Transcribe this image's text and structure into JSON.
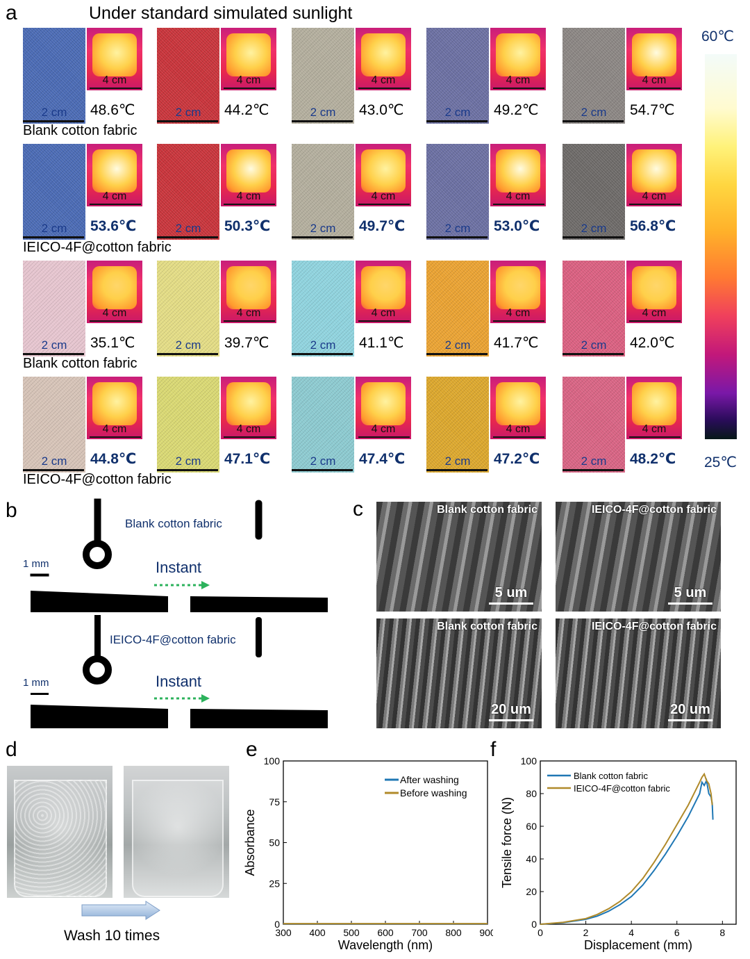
{
  "panel_a": {
    "letter": "a",
    "title": "Under standard simulated sunlight",
    "scale_small": "2 cm",
    "scale_large": "4 cm",
    "colorbar": {
      "max_label": "60℃",
      "min_label": "25℃"
    },
    "rows": [
      {
        "label": "",
        "bold": false,
        "fabric_colors": [
          "#4a6ab4",
          "#c8333a",
          "#b3ae9d",
          "#6b6fa2",
          "#8b8683"
        ],
        "temps": [
          "48.6℃",
          "44.2℃",
          "43.0℃",
          "49.2℃",
          "54.7℃"
        ],
        "hot_levels": [
          0.55,
          0.5,
          0.48,
          0.56,
          0.7
        ]
      },
      {
        "label": "Blank cotton fabric",
        "bold": true,
        "fabric_colors": [
          "#4a6ab4",
          "#c8333a",
          "#b3ae9d",
          "#6b6fa2",
          "#6d6a68"
        ],
        "temps": [
          "53.6℃",
          "50.3℃",
          "49.7℃",
          "53.0℃",
          "56.8℃"
        ],
        "hot_levels": [
          0.68,
          0.62,
          0.6,
          0.66,
          0.8
        ]
      },
      {
        "label": "IEICO-4F@cotton fabric",
        "bold": false,
        "fabric_colors": [
          "#e6c5cf",
          "#e3dc84",
          "#8fd3de",
          "#eaa231",
          "#da5f80"
        ],
        "temps": [
          "35.1℃",
          "39.7℃",
          "41.1℃",
          "41.7℃",
          "42.0℃"
        ],
        "hot_levels": [
          0.3,
          0.38,
          0.42,
          0.44,
          0.45
        ]
      },
      {
        "label": "Blank cotton fabric",
        "bold": true,
        "fabric_colors": [
          "#d6c3b7",
          "#d9d872",
          "#8ccad0",
          "#dca72c",
          "#d86383"
        ],
        "temps": [
          "44.8℃",
          "47.1℃",
          "47.4℃",
          "47.2℃",
          "48.2℃"
        ],
        "hot_levels": [
          0.52,
          0.55,
          0.56,
          0.55,
          0.57
        ]
      }
    ],
    "last_label": "IEICO-4F@cotton fabric"
  },
  "panel_b": {
    "letter": "b",
    "top": {
      "label": "Blank cotton fabric",
      "scale": "1 mm",
      "instant": "Instant"
    },
    "bottom": {
      "label": "IEICO-4F@cotton fabric",
      "scale": "1 mm",
      "instant": "Instant"
    }
  },
  "panel_c": {
    "letter": "c",
    "images": [
      {
        "title": "Blank cotton fabric",
        "scale": "5 um"
      },
      {
        "title": "IEICO-4F@cotton fabric",
        "scale": "5 um"
      },
      {
        "title": "Blank cotton fabric",
        "scale": "20 um"
      },
      {
        "title": "IEICO-4F@cotton fabric",
        "scale": "20 um"
      }
    ]
  },
  "panel_d": {
    "letter": "d",
    "caption": "Wash 10 times"
  },
  "panel_e": {
    "letter": "e",
    "chart_data": {
      "type": "line",
      "xlabel": "Wavelength (nm)",
      "ylabel": "Absorbance",
      "xlim": [
        300,
        900
      ],
      "ylim": [
        0,
        100
      ],
      "xticks": [
        300,
        400,
        500,
        600,
        700,
        800,
        900
      ],
      "yticks": [
        0,
        25,
        50,
        75,
        100
      ],
      "legend_position": "top-right",
      "series": [
        {
          "name": "After washing",
          "color": "#1f77b4",
          "x": [
            300,
            400,
            500,
            600,
            700,
            800,
            900
          ],
          "y": [
            0.3,
            0.3,
            0.3,
            0.3,
            0.3,
            0.3,
            0.3
          ]
        },
        {
          "name": "Before washing",
          "color": "#b08a2a",
          "x": [
            300,
            400,
            500,
            600,
            700,
            800,
            900
          ],
          "y": [
            0.4,
            0.4,
            0.4,
            0.4,
            0.4,
            0.4,
            0.4
          ]
        }
      ]
    }
  },
  "panel_f": {
    "letter": "f",
    "chart_data": {
      "type": "line",
      "xlabel": "Displacement (mm)",
      "ylabel": "Tensile force (N)",
      "xlim": [
        0,
        8.6
      ],
      "ylim": [
        0,
        100
      ],
      "xticks": [
        0,
        2,
        4,
        6,
        8
      ],
      "yticks": [
        0,
        20,
        40,
        60,
        80,
        100
      ],
      "legend_position": "top-left",
      "series": [
        {
          "name": "Blank cotton fabric",
          "color": "#1f77b4",
          "x": [
            0,
            1,
            2,
            2.5,
            3,
            3.5,
            4,
            4.5,
            5,
            5.5,
            6,
            6.5,
            7,
            7.1,
            7.2,
            7.3,
            7.4,
            7.5,
            7.55,
            7.58
          ],
          "y": [
            0,
            1,
            3,
            5,
            8,
            12,
            17,
            24,
            33,
            43,
            54,
            66,
            80,
            87,
            85,
            88,
            80,
            78,
            74,
            64
          ]
        },
        {
          "name": "IEICO-4F@cotton fabric",
          "color": "#b08a2a",
          "x": [
            0,
            1,
            2,
            2.5,
            3,
            3.5,
            4,
            4.5,
            5,
            5.5,
            6,
            6.5,
            7,
            7.1,
            7.2,
            7.3,
            7.4,
            7.5,
            7.55
          ],
          "y": [
            0,
            1.2,
            3.5,
            6,
            9.5,
            14,
            20,
            28,
            38,
            49,
            61,
            73,
            87,
            90,
            92,
            88,
            86,
            80,
            73
          ]
        }
      ]
    }
  }
}
